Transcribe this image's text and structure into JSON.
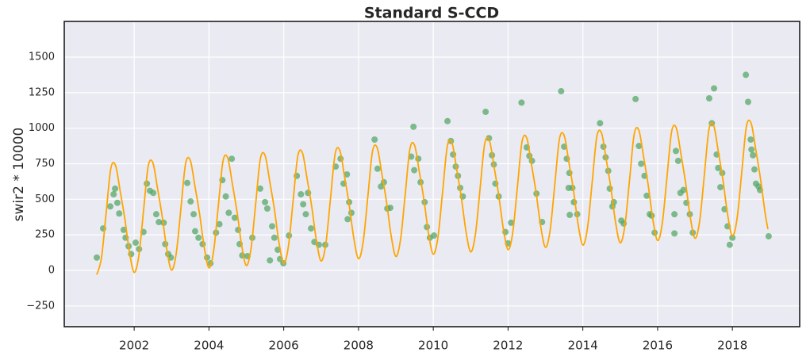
{
  "chart_data": {
    "type": "scatter",
    "title": "Standard S-CCD",
    "ylabel": "swir2 * 10000",
    "color": "#55a868",
    "grid": true,
    "xlim": [
      2000.13,
      2019.8
    ],
    "xticks": [
      2002,
      2004,
      2006,
      2008,
      2010,
      2012,
      2014,
      2016,
      2018
    ],
    "ylim": [
      -396,
      1751
    ],
    "yticks": [
      {
        "value": -250,
        "label": "−250"
      },
      0,
      250,
      500,
      750,
      1000,
      1250,
      1500
    ],
    "x": [
      2001.0,
      2001.17,
      2001.36,
      2001.45,
      2001.49,
      2001.55,
      2001.6,
      2001.72,
      2001.77,
      2001.85,
      2001.92,
      2002.04,
      2002.13,
      2002.25,
      2002.34,
      2002.42,
      2002.51,
      2002.59,
      2002.66,
      2002.79,
      2002.83,
      2002.91,
      2002.98,
      2003.42,
      2003.51,
      2003.59,
      2003.63,
      2003.72,
      2003.83,
      2003.95,
      2004.04,
      2004.19,
      2004.28,
      2004.36,
      2004.45,
      2004.53,
      2004.61,
      2004.69,
      2004.78,
      2004.82,
      2004.89,
      2005.03,
      2005.16,
      2005.37,
      2005.5,
      2005.56,
      2005.63,
      2005.69,
      2005.75,
      2005.84,
      2005.9,
      2005.99,
      2006.14,
      2006.35,
      2006.46,
      2006.52,
      2006.59,
      2006.65,
      2006.73,
      2006.82,
      2006.94,
      2007.11,
      2007.39,
      2007.52,
      2007.6,
      2007.69,
      2007.75,
      2007.81,
      2007.71,
      2008.43,
      2008.51,
      2008.6,
      2008.68,
      2008.77,
      2008.85,
      2009.41,
      2009.49,
      2009.6,
      2009.47,
      2009.66,
      2009.77,
      2009.83,
      2009.91,
      2010.02,
      2010.38,
      2010.47,
      2010.53,
      2010.6,
      2010.66,
      2010.72,
      2010.79,
      2011.4,
      2011.49,
      2011.57,
      2011.62,
      2011.66,
      2011.75,
      2011.93,
      2012.0,
      2012.08,
      2012.36,
      2012.5,
      2012.57,
      2012.64,
      2012.76,
      2012.91,
      2013.42,
      2013.5,
      2013.57,
      2013.64,
      2013.62,
      2013.72,
      2013.65,
      2013.76,
      2013.85,
      2014.46,
      2014.55,
      2014.61,
      2014.68,
      2014.72,
      2014.79,
      2014.83,
      2015.03,
      2015.09,
      2015.41,
      2015.5,
      2015.56,
      2015.65,
      2015.71,
      2015.79,
      2015.84,
      2015.92,
      2016.45,
      2016.45,
      2016.49,
      2016.55,
      2016.61,
      2016.69,
      2016.77,
      2016.86,
      2016.94,
      2017.38,
      2017.45,
      2017.51,
      2017.58,
      2017.62,
      2017.68,
      2017.73,
      2017.79,
      2017.87,
      2017.93,
      2018.0,
      2018.36,
      2018.42,
      2018.49,
      2018.51,
      2018.55,
      2018.59,
      2018.63,
      2018.7,
      2018.74,
      2018.97
    ],
    "values": [
      90,
      295,
      450,
      535,
      575,
      475,
      400,
      285,
      230,
      170,
      115,
      195,
      150,
      270,
      610,
      560,
      545,
      395,
      340,
      335,
      185,
      115,
      90,
      615,
      485,
      395,
      275,
      230,
      185,
      90,
      50,
      265,
      325,
      635,
      520,
      405,
      785,
      370,
      285,
      185,
      105,
      100,
      230,
      575,
      480,
      435,
      70,
      310,
      230,
      145,
      80,
      50,
      245,
      665,
      535,
      465,
      395,
      545,
      295,
      200,
      180,
      180,
      730,
      785,
      610,
      675,
      480,
      405,
      360,
      920,
      715,
      590,
      620,
      435,
      440,
      800,
      705,
      785,
      1010,
      620,
      480,
      305,
      230,
      245,
      1050,
      910,
      815,
      730,
      665,
      580,
      520,
      1115,
      930,
      810,
      745,
      610,
      520,
      270,
      190,
      335,
      1180,
      865,
      805,
      770,
      540,
      340,
      1260,
      870,
      785,
      685,
      580,
      580,
      390,
      480,
      395,
      1035,
      870,
      795,
      700,
      575,
      450,
      480,
      350,
      330,
      1205,
      875,
      750,
      665,
      525,
      395,
      385,
      265,
      260,
      395,
      840,
      770,
      545,
      565,
      475,
      395,
      265,
      1210,
      1035,
      1280,
      815,
      720,
      585,
      685,
      430,
      310,
      180,
      230,
      1375,
      1185,
      920,
      850,
      810,
      710,
      610,
      590,
      565,
      240
    ],
    "fit": {
      "type": "line",
      "color": "#ffa500",
      "x": [
        2001,
        2001.125,
        2001.25,
        2001.375,
        2001.5,
        2001.625,
        2001.75,
        2001.875,
        2002,
        2002.125,
        2002.25,
        2002.375,
        2002.5,
        2002.625,
        2002.75,
        2002.875,
        2003,
        2003.125,
        2003.25,
        2003.375,
        2003.5,
        2003.625,
        2003.75,
        2003.875,
        2004,
        2004.125,
        2004.25,
        2004.375,
        2004.5,
        2004.625,
        2004.75,
        2004.875,
        2005,
        2005.125,
        2005.25,
        2005.375,
        2005.5,
        2005.625,
        2005.75,
        2005.875,
        2006,
        2006.125,
        2006.25,
        2006.375,
        2006.5,
        2006.625,
        2006.75,
        2006.875,
        2007,
        2007.125,
        2007.25,
        2007.375,
        2007.5,
        2007.625,
        2007.75,
        2007.875,
        2008,
        2008.125,
        2008.25,
        2008.375,
        2008.5,
        2008.625,
        2008.75,
        2008.875,
        2009,
        2009.125,
        2009.25,
        2009.375,
        2009.5,
        2009.625,
        2009.75,
        2009.875,
        2010,
        2010.125,
        2010.25,
        2010.375,
        2010.5,
        2010.625,
        2010.75,
        2010.875,
        2011,
        2011.125,
        2011.25,
        2011.375,
        2011.5,
        2011.625,
        2011.75,
        2011.875,
        2012,
        2012.125,
        2012.25,
        2012.375,
        2012.5,
        2012.625,
        2012.75,
        2012.875,
        2013,
        2013.125,
        2013.25,
        2013.375,
        2013.5,
        2013.625,
        2013.75,
        2013.875,
        2014,
        2014.125,
        2014.25,
        2014.375,
        2014.5,
        2014.625,
        2014.75,
        2014.875,
        2015,
        2015.125,
        2015.25,
        2015.375,
        2015.5,
        2015.625,
        2015.75,
        2015.875,
        2016,
        2016.125,
        2016.25,
        2016.375,
        2016.5,
        2016.625,
        2016.75,
        2016.875,
        2017,
        2017.125,
        2017.25,
        2017.375,
        2017.5,
        2017.625,
        2017.75,
        2017.875,
        2018,
        2018.125,
        2018.25,
        2018.375,
        2018.5,
        2018.625,
        2018.75,
        2018.875,
        2018.95
      ],
      "values": [
        -30,
        88,
        402,
        716,
        739,
        559,
        363,
        127,
        -14,
        104,
        419,
        733,
        757,
        576,
        379,
        143,
        2,
        120,
        435,
        751,
        774,
        593,
        396,
        160,
        18,
        136,
        452,
        768,
        792,
        610,
        413,
        176,
        34,
        153,
        469,
        785,
        809,
        627,
        430,
        192,
        50,
        169,
        486,
        803,
        827,
        644,
        446,
        209,
        66,
        185,
        503,
        820,
        844,
        662,
        463,
        225,
        82,
        201,
        520,
        838,
        862,
        679,
        480,
        241,
        98,
        218,
        536,
        855,
        879,
        696,
        497,
        257,
        114,
        234,
        553,
        873,
        897,
        713,
        513,
        274,
        130,
        250,
        570,
        890,
        914,
        730,
        530,
        290,
        146,
        266,
        587,
        907,
        931,
        747,
        547,
        306,
        162,
        282,
        604,
        925,
        949,
        764,
        564,
        323,
        178,
        299,
        620,
        942,
        966,
        781,
        580,
        339,
        194,
        315,
        637,
        960,
        984,
        799,
        597,
        355,
        210,
        331,
        654,
        977,
        1001,
        816,
        614,
        372,
        226,
        347,
        671,
        995,
        1019,
        833,
        631,
        388,
        242,
        364,
        688,
        1012,
        1036,
        850,
        647,
        404,
        290
      ]
    }
  }
}
